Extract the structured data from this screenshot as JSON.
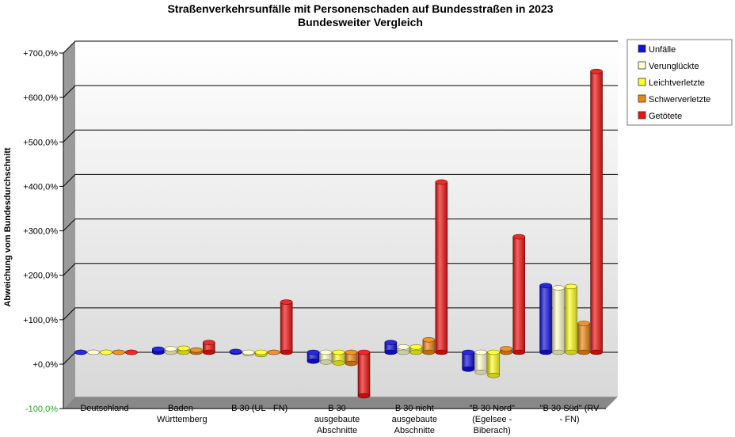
{
  "chart_data": {
    "type": "bar",
    "title": [
      "Straßenverkehrsunfälle mit Personenschaden auf Bundesstraßen in 2023",
      "Bundesweiter Vergleich"
    ],
    "ylabel": "Abweichung vom Bundesdurchschnitt",
    "xlabel": "",
    "ylim": [
      -100,
      700
    ],
    "yticks": [
      "+700,0%",
      "+600,0%",
      "+500,0%",
      "+400,0%",
      "+300,0%",
      "+200,0%",
      "+100,0%",
      "+0,0%",
      "-100,0%"
    ],
    "categories": [
      [
        "Deutschland"
      ],
      [
        "Baden-",
        "Württemberg"
      ],
      [
        "B 30 (UL - FN)"
      ],
      [
        "B 30",
        "ausgebaute",
        "Abschnitte"
      ],
      [
        "B 30 nicht",
        "ausgebaute",
        "Abschnitte"
      ],
      [
        "\"B 30 Nord\"",
        "(Egelsee -",
        "Biberach)"
      ],
      [
        "\"B 30 Süd\" (RV",
        "- FN)"
      ]
    ],
    "series": [
      {
        "name": "Unfälle",
        "color": "#1010e0",
        "values": [
          0,
          7,
          2,
          -20,
          22,
          -38,
          150
        ]
      },
      {
        "name": "Verunglückte",
        "color": "#ffffcc",
        "values": [
          0,
          8,
          -3,
          -22,
          12,
          -45,
          145
        ]
      },
      {
        "name": "Leichtverletzte",
        "color": "#ffff22",
        "values": [
          0,
          9,
          -5,
          -24,
          12,
          -52,
          148
        ]
      },
      {
        "name": "Schwerverletzte",
        "color": "#ee8811",
        "values": [
          0,
          5,
          0,
          -25,
          28,
          8,
          65
        ]
      },
      {
        "name": "Getötete",
        "color": "#ee1111",
        "values": [
          0,
          22,
          113,
          -98,
          383,
          260,
          632
        ]
      }
    ],
    "legend_position": "right",
    "grid": true
  }
}
